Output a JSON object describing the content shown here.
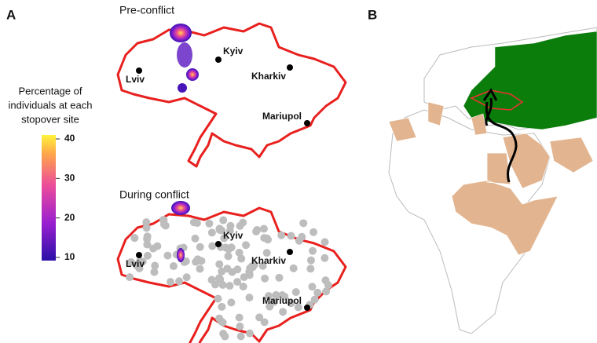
{
  "panel_a": {
    "label": "A",
    "legend": {
      "title": [
        "Percentage of",
        "individuals at each",
        "stopover site"
      ],
      "ticks": [
        10,
        20,
        30,
        40
      ]
    },
    "maps": [
      {
        "title": "Pre-conflict",
        "cities": [
          "Kyiv",
          "Lviv",
          "Kharkiv",
          "Mariupol"
        ]
      },
      {
        "title": "During conflict",
        "cities": [
          "Kyiv",
          "Lviv",
          "Kharkiv",
          "Mariupol"
        ]
      }
    ]
  },
  "panel_b": {
    "label": "B"
  }
}
